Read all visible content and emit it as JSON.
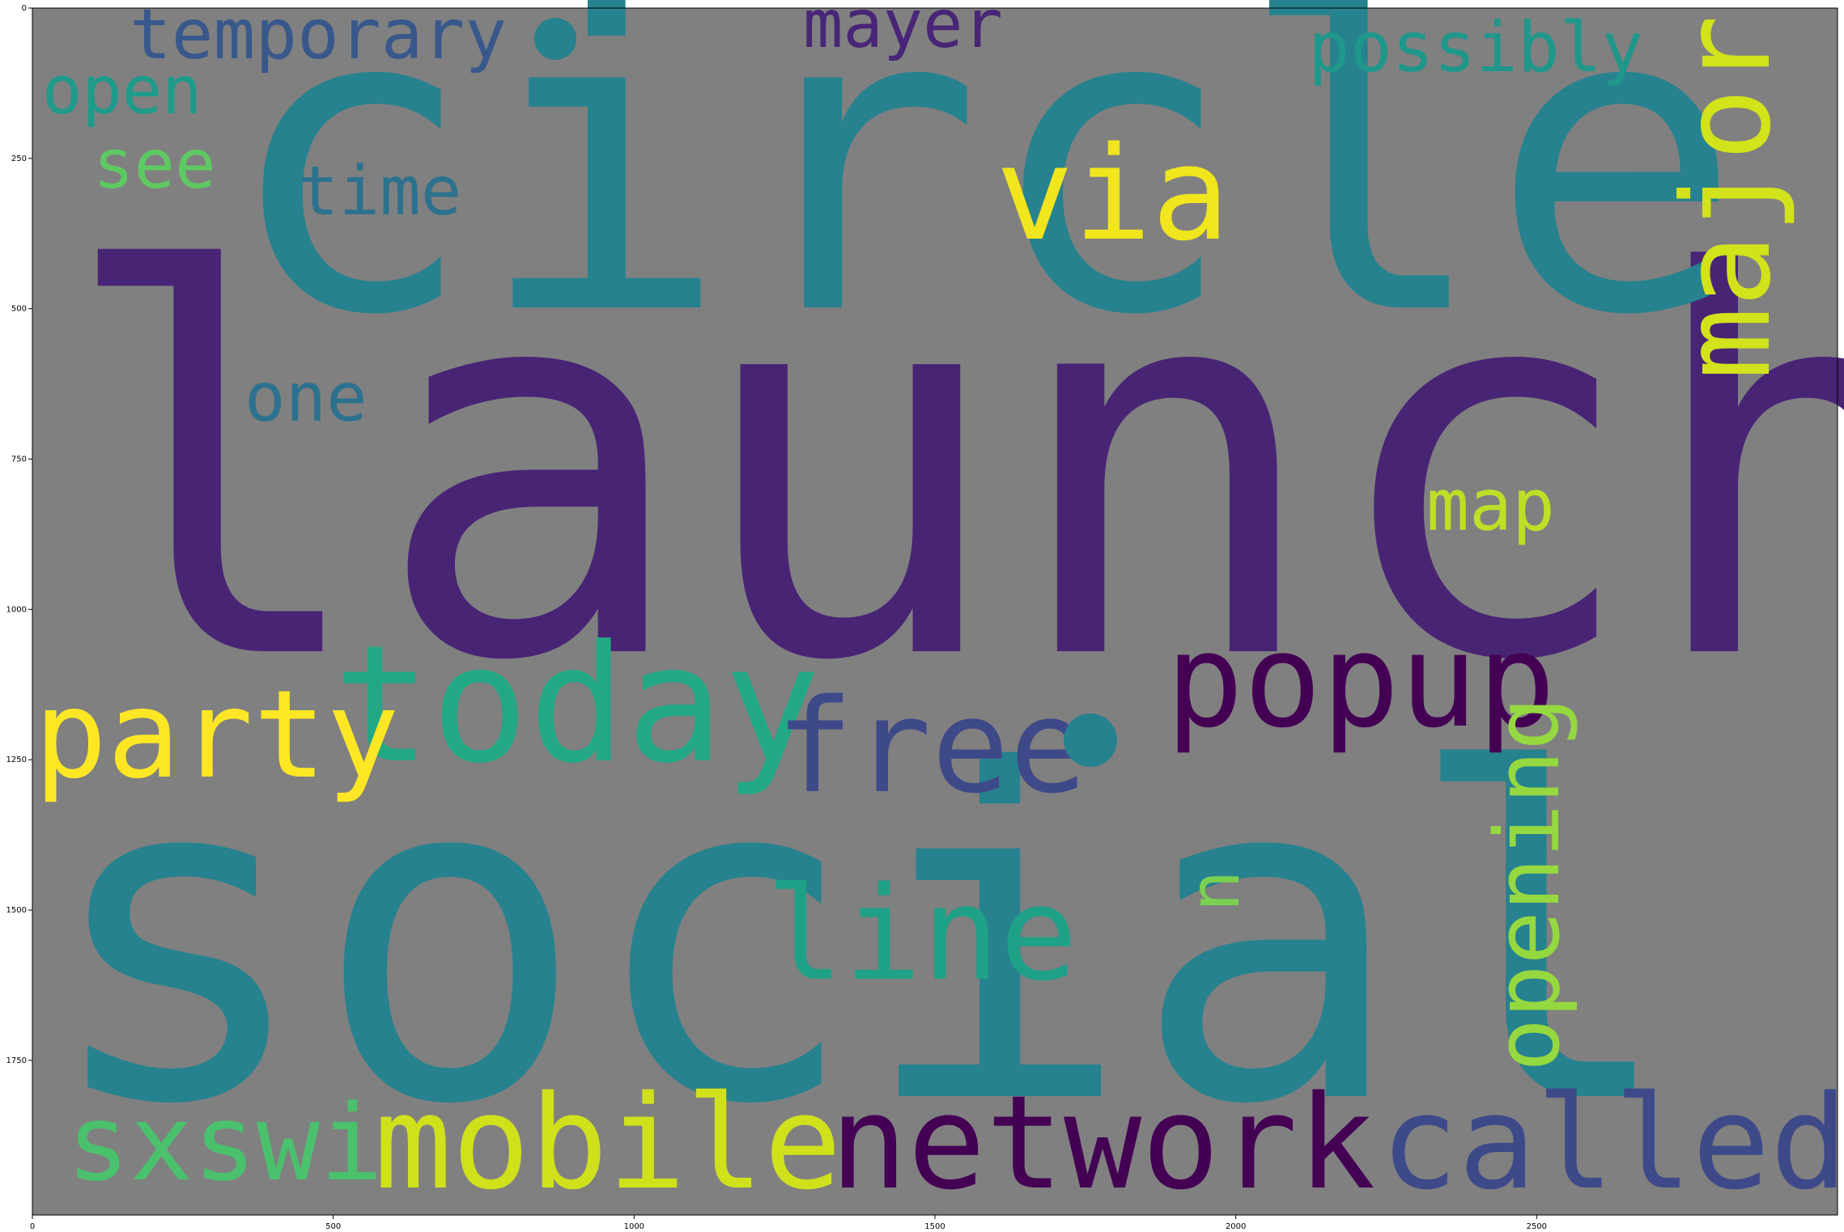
{
  "words": [
    {
      "text": "launch",
      "color": "#482475"
    },
    {
      "text": "circle",
      "color": "#26828e"
    },
    {
      "text": "social",
      "color": "#26828e"
    },
    {
      "text": "temporary",
      "color": "#38588c"
    },
    {
      "text": "mayer",
      "color": "#482576"
    },
    {
      "text": "possibly",
      "color": "#1f978b"
    },
    {
      "text": "open",
      "color": "#1e9b8a"
    },
    {
      "text": "see",
      "color": "#5ec962"
    },
    {
      "text": "time",
      "color": "#2c728e"
    },
    {
      "text": "via",
      "color": "#f1e51d"
    },
    {
      "text": "major",
      "color": "#d2e21b"
    },
    {
      "text": "one",
      "color": "#2c728e"
    },
    {
      "text": "map",
      "color": "#bddf26"
    },
    {
      "text": "today",
      "color": "#22a884"
    },
    {
      "text": "party",
      "color": "#fde725"
    },
    {
      "text": "free",
      "color": "#3e4989"
    },
    {
      "text": "popup",
      "color": "#440154"
    },
    {
      "text": "opening",
      "color": "#95d840"
    },
    {
      "text": "u",
      "color": "#7ad151"
    },
    {
      "text": "line",
      "color": "#1fa187"
    },
    {
      "text": "sxswi",
      "color": "#4ac16d"
    },
    {
      "text": "mobile",
      "color": "#d0e11c"
    },
    {
      "text": "network",
      "color": "#440154"
    },
    {
      "text": "called",
      "color": "#3e4989"
    }
  ],
  "axes": {
    "x_ticks": [
      "0",
      "500",
      "1000",
      "1500",
      "2000",
      "2500"
    ],
    "y_ticks": [
      "0",
      "250",
      "500",
      "750",
      "1000",
      "1250",
      "1500",
      "1750"
    ]
  },
  "colors": {
    "background": "#808080",
    "page": "#ffffff",
    "axis": "#000000"
  }
}
